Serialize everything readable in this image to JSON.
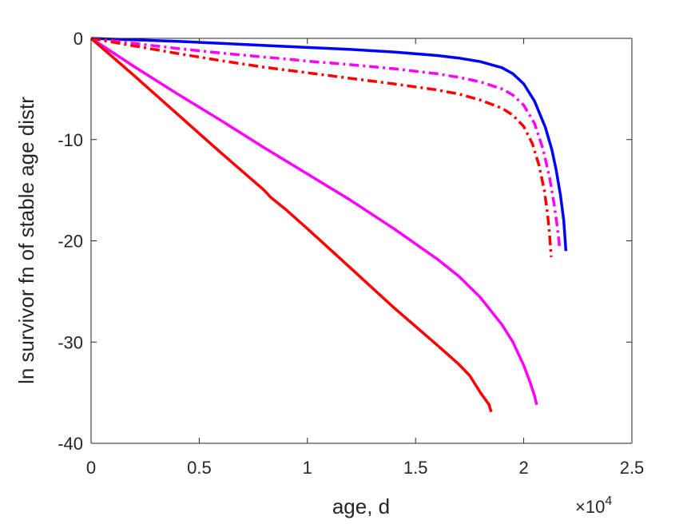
{
  "chart_data": {
    "type": "line",
    "title": "",
    "xlabel": "age, d",
    "ylabel": "ln survivor fn of stable age distr",
    "x_exponent_label": {
      "base": "×10",
      "power": "4"
    },
    "xlim": [
      0,
      25000
    ],
    "ylim": [
      -40,
      0
    ],
    "x_ticks": [
      0,
      5000,
      10000,
      15000,
      20000,
      25000
    ],
    "x_tick_labels": [
      "0",
      "0.5",
      "1",
      "1.5",
      "2",
      "2.5"
    ],
    "y_ticks": [
      0,
      -10,
      -20,
      -30,
      -40
    ],
    "y_tick_labels": [
      "0",
      "-10",
      "-20",
      "-30",
      "-40"
    ],
    "grid": false,
    "legend": "none",
    "series": [
      {
        "color": "#0000ff",
        "style": "solid",
        "x": [
          0,
          2000,
          4000,
          6000,
          8000,
          10000,
          12000,
          14000,
          16000,
          17000,
          18000,
          19000,
          19500,
          20000,
          20500,
          21000,
          21300,
          21500,
          21700,
          21850,
          21950
        ],
        "y": [
          0,
          -0.15,
          -0.3,
          -0.5,
          -0.7,
          -0.9,
          -1.1,
          -1.35,
          -1.7,
          -1.95,
          -2.3,
          -2.9,
          -3.5,
          -4.5,
          -6.2,
          -8.8,
          -11.0,
          -13.0,
          -15.5,
          -18.0,
          -21.0
        ]
      },
      {
        "color": "#ff00ff",
        "style": "dashdot",
        "x": [
          0,
          2000,
          4000,
          6000,
          8000,
          10000,
          12000,
          14000,
          16000,
          17000,
          18000,
          19000,
          19500,
          20000,
          20500,
          20900,
          21200,
          21400,
          21550,
          21650
        ],
        "y": [
          0,
          -0.5,
          -1.0,
          -1.45,
          -1.85,
          -2.25,
          -2.6,
          -3.0,
          -3.5,
          -3.85,
          -4.3,
          -5.0,
          -5.6,
          -6.6,
          -8.4,
          -11.0,
          -13.8,
          -16.3,
          -18.6,
          -20.5
        ]
      },
      {
        "color": "#ff0000",
        "style": "dashdot",
        "x": [
          0,
          2000,
          4000,
          6000,
          8000,
          10000,
          12000,
          14000,
          16000,
          17000,
          18000,
          19000,
          19500,
          20000,
          20400,
          20700,
          20950,
          21100,
          21200,
          21270
        ],
        "y": [
          0,
          -0.75,
          -1.5,
          -2.2,
          -2.85,
          -3.4,
          -3.95,
          -4.5,
          -5.1,
          -5.5,
          -6.1,
          -6.9,
          -7.6,
          -8.7,
          -10.4,
          -12.5,
          -15.0,
          -17.3,
          -19.5,
          -21.6
        ]
      },
      {
        "color": "#ff00ff",
        "style": "solid",
        "x": [
          0,
          2000,
          4000,
          6000,
          8000,
          10000,
          12000,
          14000,
          16000,
          17000,
          18000,
          19000,
          19500,
          20000,
          20300,
          20500,
          20600
        ],
        "y": [
          0,
          -2.8,
          -5.5,
          -8.1,
          -10.8,
          -13.4,
          -16.0,
          -18.8,
          -21.8,
          -23.5,
          -25.6,
          -28.3,
          -30.0,
          -32.3,
          -34.0,
          -35.3,
          -36.2
        ]
      },
      {
        "color": "#ff0000",
        "style": "solid",
        "x": [
          0,
          2000,
          4000,
          6000,
          8000,
          8300,
          9000,
          10000,
          12000,
          14000,
          16000,
          17000,
          17500,
          18000,
          18200,
          18400,
          18450,
          18500
        ],
        "y": [
          0,
          -3.7,
          -7.5,
          -11.3,
          -15.0,
          -15.7,
          -16.9,
          -18.8,
          -22.7,
          -26.6,
          -30.3,
          -32.2,
          -33.3,
          -35.0,
          -35.6,
          -36.2,
          -36.6,
          -36.9
        ]
      }
    ]
  }
}
